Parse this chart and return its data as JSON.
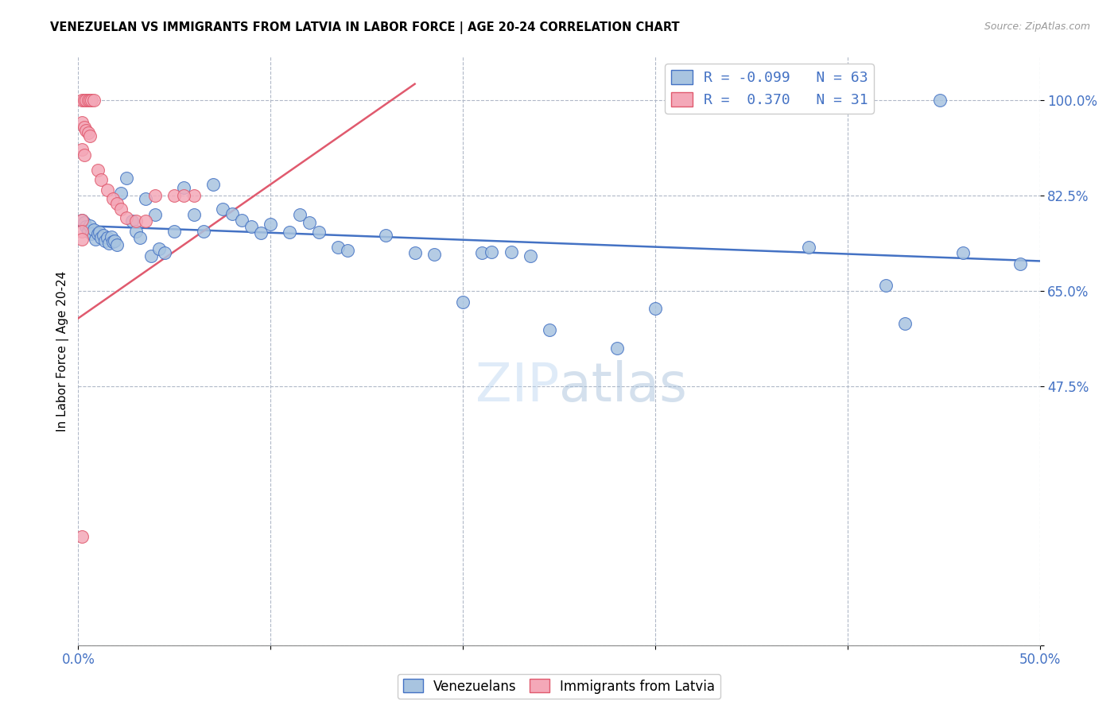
{
  "title": "VENEZUELAN VS IMMIGRANTS FROM LATVIA IN LABOR FORCE | AGE 20-24 CORRELATION CHART",
  "source": "Source: ZipAtlas.com",
  "ylabel": "In Labor Force | Age 20-24",
  "xlim": [
    0.0,
    0.5
  ],
  "ylim": [
    0.0,
    1.08
  ],
  "xtick_positions": [
    0.0,
    0.1,
    0.2,
    0.3,
    0.4,
    0.5
  ],
  "xticklabels": [
    "0.0%",
    "",
    "",
    "",
    "",
    "50.0%"
  ],
  "ytick_positions": [
    0.0,
    0.475,
    0.65,
    0.825,
    1.0
  ],
  "ytick_labels": [
    "",
    "47.5%",
    "65.0%",
    "82.5%",
    "100.0%"
  ],
  "legend_r_blue": "-0.099",
  "legend_n_blue": "63",
  "legend_r_pink": "0.370",
  "legend_n_pink": "31",
  "blue_fill": "#a8c4e0",
  "pink_fill": "#f4a8b8",
  "blue_edge": "#4472c4",
  "pink_edge": "#e05a6e",
  "blue_line": "#4472c4",
  "pink_line": "#e05a6e",
  "blue_x": [
    0.002,
    0.003,
    0.004,
    0.005,
    0.006,
    0.007,
    0.008,
    0.009,
    0.01,
    0.011,
    0.012,
    0.013,
    0.014,
    0.015,
    0.016,
    0.017,
    0.018,
    0.019,
    0.02,
    0.022,
    0.025,
    0.028,
    0.03,
    0.032,
    0.035,
    0.038,
    0.04,
    0.042,
    0.045,
    0.05,
    0.055,
    0.06,
    0.065,
    0.07,
    0.075,
    0.08,
    0.085,
    0.09,
    0.095,
    0.1,
    0.11,
    0.115,
    0.12,
    0.125,
    0.135,
    0.14,
    0.16,
    0.175,
    0.185,
    0.2,
    0.21,
    0.215,
    0.225,
    0.235,
    0.245,
    0.28,
    0.3,
    0.38,
    0.42,
    0.43,
    0.448,
    0.46,
    0.49
  ],
  "blue_y": [
    0.78,
    0.775,
    0.768,
    0.76,
    0.77,
    0.755,
    0.762,
    0.745,
    0.755,
    0.758,
    0.748,
    0.752,
    0.742,
    0.748,
    0.738,
    0.75,
    0.74,
    0.742,
    0.735,
    0.83,
    0.858,
    0.778,
    0.76,
    0.748,
    0.82,
    0.715,
    0.79,
    0.728,
    0.72,
    0.76,
    0.84,
    0.79,
    0.76,
    0.845,
    0.8,
    0.792,
    0.78,
    0.768,
    0.756,
    0.773,
    0.758,
    0.79,
    0.775,
    0.758,
    0.73,
    0.725,
    0.752,
    0.72,
    0.718,
    0.63,
    0.72,
    0.722,
    0.722,
    0.715,
    0.578,
    0.545,
    0.618,
    0.73,
    0.66,
    0.59,
    1.0,
    0.72,
    0.7
  ],
  "pink_x": [
    0.002,
    0.003,
    0.004,
    0.005,
    0.006,
    0.007,
    0.008,
    0.002,
    0.003,
    0.004,
    0.005,
    0.006,
    0.002,
    0.003,
    0.01,
    0.012,
    0.015,
    0.018,
    0.02,
    0.022,
    0.025,
    0.03,
    0.035,
    0.04,
    0.002,
    0.05,
    0.06,
    0.002,
    0.002,
    0.055,
    0.002
  ],
  "pink_y": [
    1.0,
    1.0,
    1.0,
    1.0,
    1.0,
    1.0,
    1.0,
    0.96,
    0.95,
    0.945,
    0.94,
    0.935,
    0.91,
    0.9,
    0.872,
    0.855,
    0.835,
    0.82,
    0.81,
    0.8,
    0.785,
    0.778,
    0.778,
    0.825,
    0.78,
    0.825,
    0.825,
    0.76,
    0.745,
    0.825,
    0.2
  ]
}
